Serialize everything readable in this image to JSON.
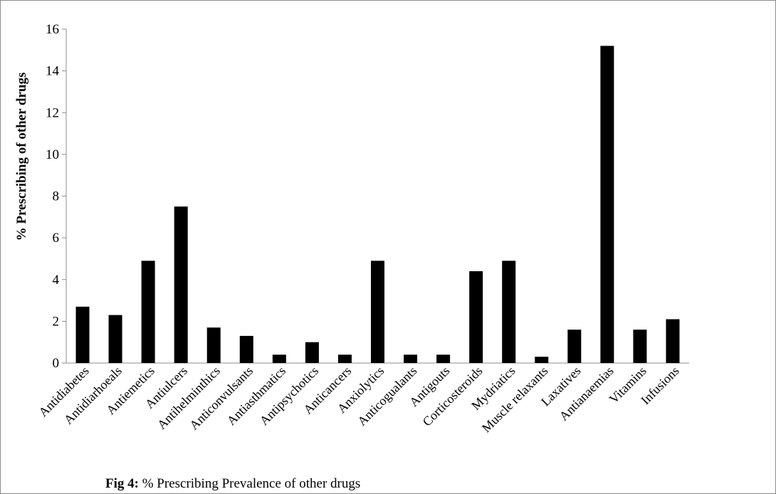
{
  "caption": {
    "prefix": "Fig 4:",
    "text": " % Prescribing Prevalence of other drugs"
  },
  "chart_data": {
    "type": "bar",
    "ylabel": "% Prescribing  of other drugs",
    "xlabel": "",
    "ylim": [
      0,
      16
    ],
    "yticks": [
      0,
      2,
      4,
      6,
      8,
      10,
      12,
      14,
      16
    ],
    "grid": false,
    "bar_color": "#000000",
    "categories": [
      "Antidiabetes",
      "Antidiarhoeals",
      "Antiemetics",
      "Antiulcers",
      "Antihelminthics",
      "Anticonvulsants",
      "Antiasthmatics",
      "Antipsychotics",
      "Anticancers",
      "Anxiolytics",
      "Anticogualants",
      "Antigouts",
      "Corticosteroids",
      "Mydriatics",
      "Muscle  relaxants",
      "Laxatives",
      "Antianaemias",
      "Vitamins",
      "Infusions"
    ],
    "values": [
      2.7,
      2.3,
      4.9,
      7.5,
      1.7,
      1.3,
      0.4,
      1.0,
      0.4,
      4.9,
      0.4,
      0.4,
      4.4,
      4.9,
      0.3,
      1.6,
      15.2,
      1.6,
      2.1
    ]
  }
}
